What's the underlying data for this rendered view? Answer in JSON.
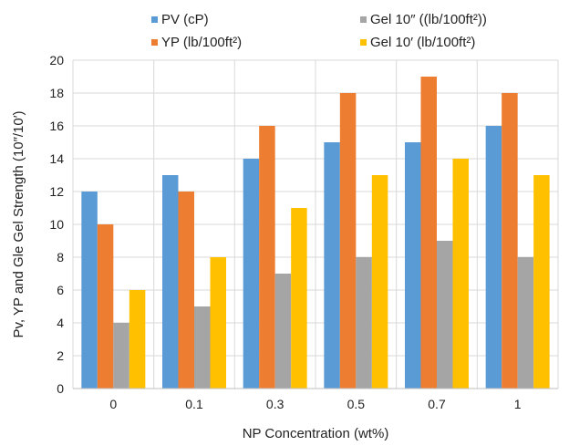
{
  "chart_data": {
    "type": "bar",
    "title": "",
    "xlabel": "NP Concentration (wt%)",
    "ylabel": "Pv, YP and  Gle Gel Strength (10″/10′)",
    "categories": [
      "0",
      "0.1",
      "0.3",
      "0.5",
      "0.7",
      "1"
    ],
    "ylim": [
      0,
      20
    ],
    "yticks": [
      0,
      2,
      4,
      6,
      8,
      10,
      12,
      14,
      16,
      18,
      20
    ],
    "grid": true,
    "legend_position": "top",
    "series": [
      {
        "name": "PV (cP)",
        "color": "#5b9bd5",
        "values": [
          12,
          13,
          14,
          15,
          15,
          16
        ]
      },
      {
        "name": "YP (lb/100ft²)",
        "color": "#ed7d31",
        "values": [
          10,
          12,
          16,
          18,
          19,
          18
        ]
      },
      {
        "name": "Gel 10″ ((lb/100ft²))",
        "color": "#a5a5a5",
        "values": [
          4,
          5,
          7,
          8,
          9,
          8
        ]
      },
      {
        "name": "Gel 10′ (lb/100ft²)",
        "color": "#ffc000",
        "values": [
          6,
          8,
          11,
          13,
          14,
          13
        ]
      }
    ]
  }
}
